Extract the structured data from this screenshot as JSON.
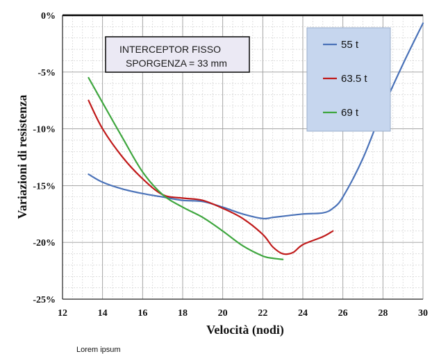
{
  "chart_data": {
    "type": "line",
    "xlabel": "Velocità  (nodi)",
    "ylabel": "Variazioni di resistenza",
    "xlim": [
      12,
      30
    ],
    "ylim": [
      -25,
      0
    ],
    "x_ticks": [
      12,
      14,
      16,
      18,
      20,
      22,
      24,
      26,
      28,
      30
    ],
    "x_tick_labels": [
      "12",
      "14",
      "16",
      "18",
      "20",
      "22",
      "24",
      "26",
      "28",
      "30"
    ],
    "y_ticks": [
      0,
      -5,
      -10,
      -15,
      -20,
      -25
    ],
    "y_tick_labels": [
      "0%",
      "-5%",
      "-10%",
      "-15%",
      "-20%",
      "-25%"
    ],
    "grid": true,
    "legend_position": "top-right",
    "annotation": [
      "INTERCEPTOR FISSO",
      "SPORGENZA = 33 mm"
    ],
    "series": [
      {
        "name": "55 t",
        "color": "#4a72b8",
        "x": [
          13.3,
          14,
          15,
          16,
          17,
          18,
          19,
          20,
          21,
          22,
          22.5,
          23,
          24,
          25,
          25.5,
          26,
          27,
          28,
          29,
          30
        ],
        "y": [
          -14.0,
          -14.7,
          -15.3,
          -15.7,
          -16.0,
          -16.3,
          -16.4,
          -16.9,
          -17.5,
          -17.9,
          -17.8,
          -17.7,
          -17.5,
          -17.4,
          -17.0,
          -16.0,
          -12.6,
          -8.2,
          -4.3,
          -0.7
        ]
      },
      {
        "name": "63.5 t",
        "color": "#c01a1a",
        "x": [
          13.3,
          14,
          15,
          16,
          17,
          18,
          19,
          20,
          21,
          22,
          22.5,
          23,
          23.5,
          24,
          25,
          25.5
        ],
        "y": [
          -7.5,
          -10.0,
          -12.5,
          -14.4,
          -15.8,
          -16.1,
          -16.3,
          -17.0,
          -17.9,
          -19.3,
          -20.4,
          -21.0,
          -20.9,
          -20.2,
          -19.5,
          -19.0
        ]
      },
      {
        "name": "69 t",
        "color": "#3ea63e",
        "x": [
          13.3,
          14,
          15,
          16,
          17,
          18,
          19,
          20,
          21,
          22,
          22.5,
          23
        ],
        "y": [
          -5.5,
          -7.7,
          -10.8,
          -13.8,
          -15.8,
          -16.9,
          -17.8,
          -19.0,
          -20.3,
          -21.2,
          -21.4,
          -21.5
        ]
      }
    ]
  },
  "caption": "Lorem ipsum"
}
